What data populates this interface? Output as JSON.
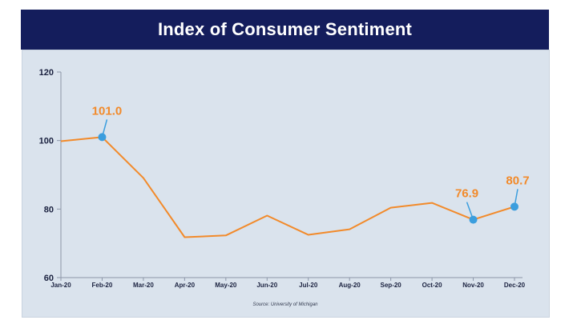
{
  "header": {
    "title": "Index of Consumer Sentiment"
  },
  "source": "Source: University of Michigan",
  "colors": {
    "header_bg": "#141d5c",
    "panel_bg": "#dae3ed",
    "line": "#f28a2a",
    "marker": "#3b9ede",
    "label": "#f28a2a"
  },
  "chart_data": {
    "type": "line",
    "title": "Index of Consumer Sentiment",
    "xlabel": "",
    "ylabel": "",
    "ylim": [
      60,
      120
    ],
    "yticks": [
      60,
      80,
      100,
      120
    ],
    "grid": false,
    "categories": [
      "Jan-20",
      "Feb-20",
      "Mar-20",
      "Apr-20",
      "May-20",
      "Jun-20",
      "Jul-20",
      "Aug-20",
      "Sep-20",
      "Oct-20",
      "Nov-20",
      "Dec-20"
    ],
    "series": [
      {
        "values": [
          99.8,
          101.0,
          89.1,
          71.8,
          72.3,
          78.1,
          72.5,
          74.1,
          80.4,
          81.8,
          76.9,
          80.7
        ]
      }
    ],
    "annotations": [
      {
        "category": "Feb-20",
        "value": 101.0,
        "label": "101.0"
      },
      {
        "category": "Nov-20",
        "value": 76.9,
        "label": "76.9"
      },
      {
        "category": "Dec-20",
        "value": 80.7,
        "label": "80.7"
      }
    ]
  }
}
